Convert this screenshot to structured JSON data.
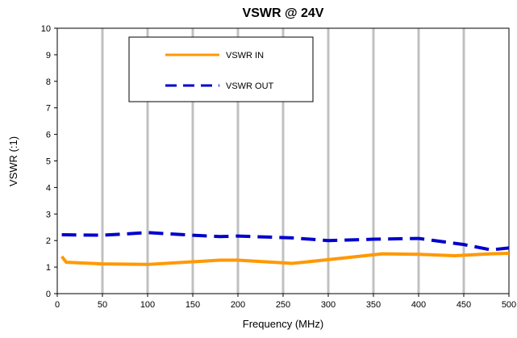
{
  "chart_data": {
    "type": "line",
    "title": "VSWR @ 24V",
    "xlabel": "Frequency (MHz)",
    "ylabel": "VSWR (:1)",
    "xlim": [
      0,
      500
    ],
    "ylim": [
      0,
      10
    ],
    "xticks": [
      0,
      50,
      100,
      150,
      200,
      250,
      300,
      350,
      400,
      450,
      500
    ],
    "yticks": [
      0,
      1,
      2,
      3,
      4,
      5,
      6,
      7,
      8,
      9,
      10
    ],
    "grid": {
      "vertical": true,
      "horizontal": false,
      "color": "#c0c0c0"
    },
    "legend_position": "top-left",
    "series": [
      {
        "name": "VSWR IN",
        "color": "#ff9900",
        "style": "solid",
        "x": [
          5,
          10,
          50,
          100,
          150,
          180,
          200,
          260,
          300,
          360,
          400,
          440,
          480,
          500
        ],
        "y": [
          1.4,
          1.18,
          1.12,
          1.1,
          1.2,
          1.26,
          1.26,
          1.14,
          1.28,
          1.5,
          1.48,
          1.43,
          1.5,
          1.52
        ]
      },
      {
        "name": "VSWR OUT",
        "color": "#0000cc",
        "style": "dashed",
        "x": [
          5,
          50,
          100,
          150,
          180,
          200,
          260,
          300,
          350,
          400,
          450,
          480,
          500
        ],
        "y": [
          2.22,
          2.2,
          2.3,
          2.2,
          2.15,
          2.17,
          2.1,
          2.0,
          2.05,
          2.08,
          1.85,
          1.65,
          1.72
        ]
      }
    ]
  }
}
